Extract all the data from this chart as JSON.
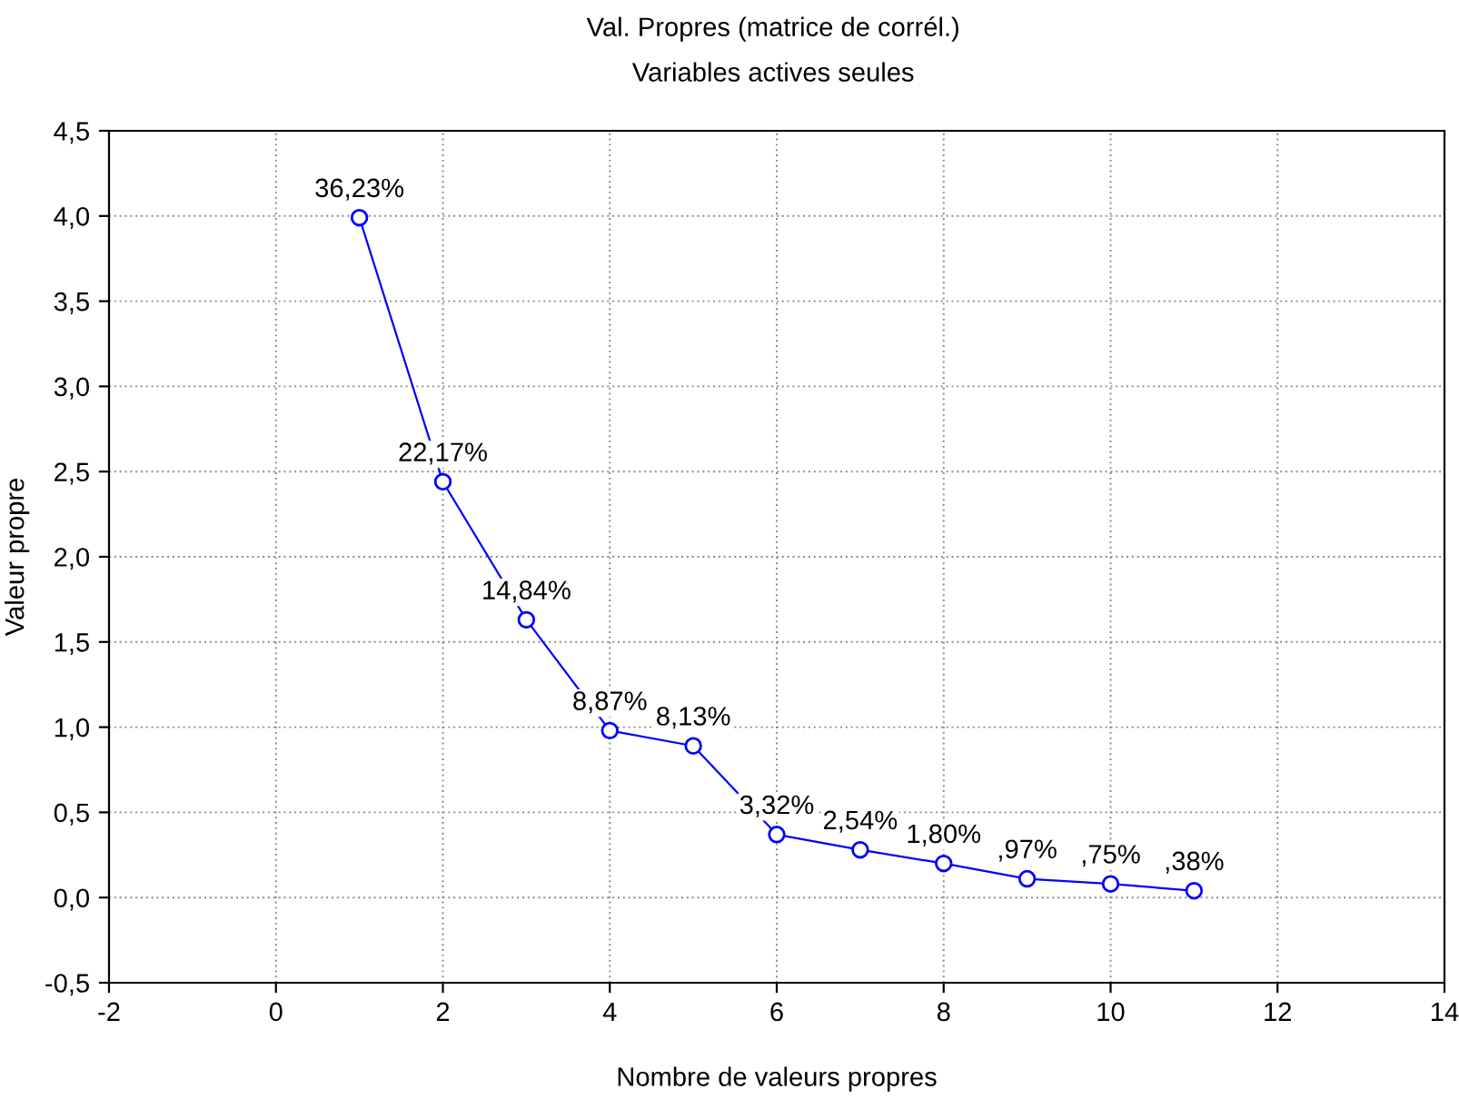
{
  "chart_data": {
    "type": "line",
    "title": "Val. Propres (matrice de corrél.)",
    "subtitle": "Variables actives seules",
    "xlabel": "Nombre de valeurs propres",
    "ylabel": "Valeur propre",
    "x": [
      1,
      2,
      3,
      4,
      5,
      6,
      7,
      8,
      9,
      10,
      11
    ],
    "series": [
      {
        "color": "#0000ff",
        "values": [
          3.99,
          2.44,
          1.63,
          0.98,
          0.89,
          0.37,
          0.28,
          0.2,
          0.11,
          0.08,
          0.04
        ]
      }
    ],
    "annotations": [
      {
        "text": "36,23%",
        "x": 1,
        "y": 3.99
      },
      {
        "text": "22,17%",
        "x": 2,
        "y": 2.44
      },
      {
        "text": "14,84%",
        "x": 3,
        "y": 1.63
      },
      {
        "text": "8,87%",
        "x": 4,
        "y": 0.98
      },
      {
        "text": "8,13%",
        "x": 5,
        "y": 0.89
      },
      {
        "text": "3,32%",
        "x": 6,
        "y": 0.37
      },
      {
        "text": "2,54%",
        "x": 7,
        "y": 0.28
      },
      {
        "text": "1,80%",
        "x": 8,
        "y": 0.2
      },
      {
        "text": ",97%",
        "x": 9,
        "y": 0.11
      },
      {
        "text": ",75%",
        "x": 10,
        "y": 0.08
      },
      {
        "text": ",38%",
        "x": 11,
        "y": 0.04
      }
    ],
    "xlim": [
      -2,
      14
    ],
    "xticks": [
      -2,
      0,
      2,
      4,
      6,
      8,
      10,
      12,
      14
    ],
    "ylim": [
      -0.5,
      4.5
    ],
    "yticks": [
      {
        "value": -0.5,
        "label": "-0,5"
      },
      {
        "value": 0,
        "label": "0,0"
      },
      {
        "value": 0.5,
        "label": "0,5"
      },
      {
        "value": 1,
        "label": "1,0"
      },
      {
        "value": 1.5,
        "label": "1,5"
      },
      {
        "value": 2,
        "label": "2,0"
      },
      {
        "value": 2.5,
        "label": "2,5"
      },
      {
        "value": 3,
        "label": "3,0"
      },
      {
        "value": 3.5,
        "label": "3,5"
      },
      {
        "value": 4,
        "label": "4,0"
      },
      {
        "value": 4.5,
        "label": "4,5"
      }
    ],
    "grid": true,
    "marker": "circle",
    "line_style": "solid"
  }
}
